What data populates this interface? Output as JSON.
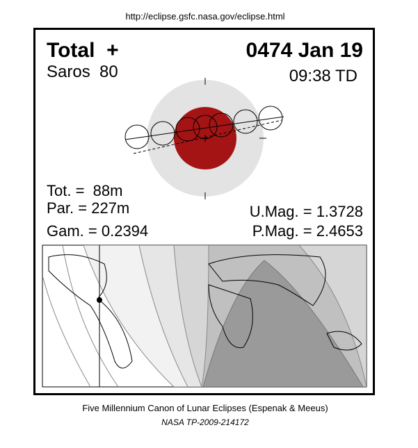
{
  "header": {
    "url": "http://eclipse.gsfc.nasa.gov/eclipse.html"
  },
  "eclipse": {
    "type": "Total  +",
    "date": "0474 Jan 19",
    "saros": "Saros  80",
    "time": "09:38 TD",
    "tot": "Tot. =  88m",
    "par": "Par. = 227m",
    "gam": "Gam. = 0.2394",
    "umag": "U.Mag. = 1.3728",
    "pmag": "P.Mag. = 2.4653"
  },
  "footer": {
    "line1": "Five Millennium Canon of Lunar Eclipses (Espenak & Meeus)",
    "line2": "NASA TP-2009-214172"
  }
}
